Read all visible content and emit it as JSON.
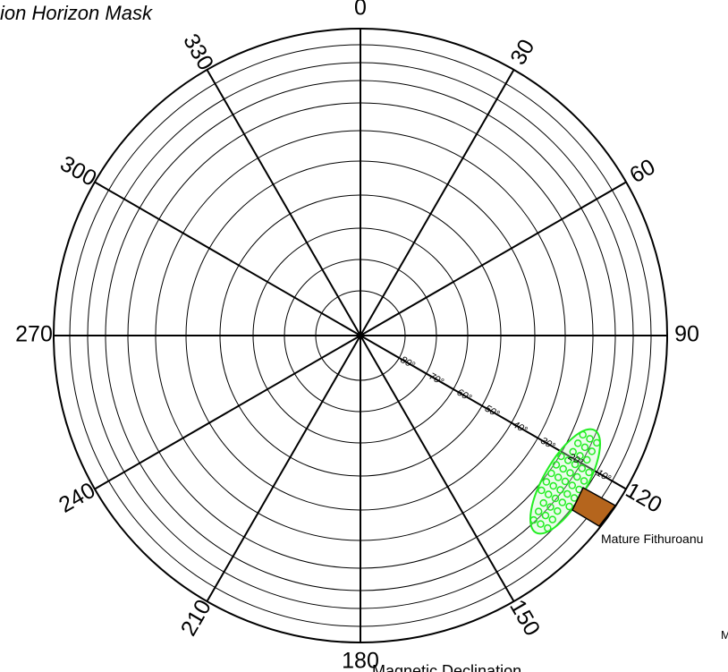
{
  "title": "ion Horizon Mask",
  "azimuth_labels": [
    "0",
    "30",
    "60",
    "90",
    "120",
    "150",
    "180",
    "210",
    "240",
    "270",
    "300",
    "330"
  ],
  "elevation_labels": [
    "80°",
    "70°",
    "60°",
    "50°",
    "40°",
    "30°",
    "20°",
    "10°"
  ],
  "feature_label": "Mature Fithuroanu",
  "declination_label": "Magnetic Declination",
  "edge_text": "M"
}
